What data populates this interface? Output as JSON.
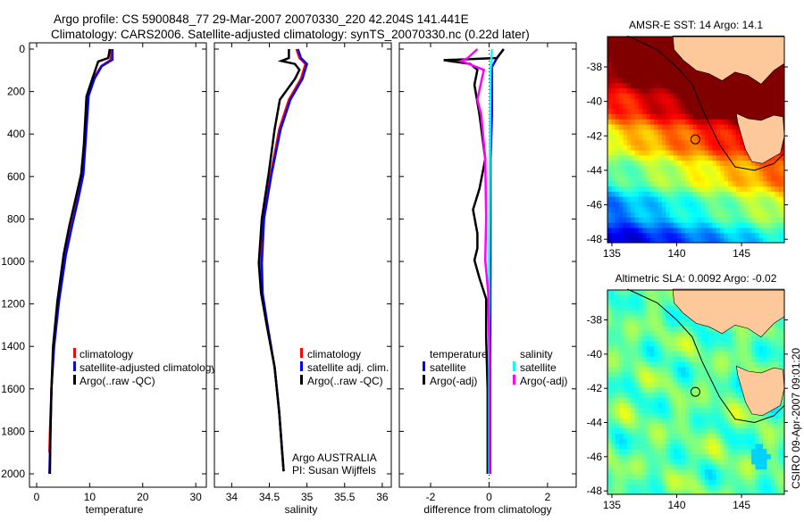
{
  "title": {
    "line1": "Argo profile: CS 5900848_77 29-Mar-2007 20070330_220 42.204S 141.441E",
    "line2": "Climatology: CARS2006. Satellite-adjusted climatology: synTS_20070330.nc (0.22d later)"
  },
  "credit": "CSIRO 09-Apr-2007 09:01:20",
  "colors": {
    "climatology": "#ff0000",
    "satellite": "#0000ff",
    "argo": "#000000",
    "sal_satellite": "#00ffff",
    "sal_argo": "#ff00ff",
    "land": "#fdc99a"
  },
  "chart_data": [
    {
      "type": "line",
      "name": "temperature-profile",
      "xlabel": "temperature",
      "ylabel": "",
      "xlim": [
        -1.35,
        32
      ],
      "ylim": [
        2000,
        0
      ],
      "xticks": [
        "0",
        "10",
        "20",
        "30"
      ],
      "xtick_values": [
        0,
        10,
        20,
        30
      ],
      "yticks": [
        "0",
        "200",
        "400",
        "600",
        "800",
        "1000",
        "1200",
        "1400",
        "1600",
        "1800",
        "2000"
      ],
      "ytick_values": [
        0,
        200,
        400,
        600,
        800,
        1000,
        1200,
        1400,
        1600,
        1800,
        2000
      ],
      "legend": [
        "climatology",
        "satellite-adjusted climatology",
        "Argo(..raw -QC)"
      ],
      "series": [
        {
          "name": "climatology",
          "color": "#ff0000",
          "depth": [
            0,
            50,
            80,
            140,
            220,
            450,
            590,
            700,
            830,
            970,
            1190,
            1400,
            1600,
            1800,
            1900
          ],
          "values": [
            14.0,
            14.0,
            12.2,
            10.7,
            9.6,
            9.1,
            8.7,
            7.8,
            6.6,
            5.4,
            4.1,
            3.2,
            2.8,
            2.5,
            2.4
          ]
        },
        {
          "name": "satellite-adjusted climatology",
          "color": "#0000ff",
          "depth": [
            0,
            50,
            80,
            140,
            220,
            450,
            590,
            700,
            830,
            970,
            1190,
            1400,
            1600,
            1800,
            2000
          ],
          "values": [
            14.3,
            14.3,
            12.3,
            10.9,
            9.8,
            9.2,
            8.8,
            7.9,
            6.7,
            5.5,
            4.2,
            3.3,
            2.8,
            2.6,
            2.4
          ]
        },
        {
          "name": "Argo(..raw -QC)",
          "color": "#000000",
          "depth": [
            0,
            42,
            59,
            139,
            223,
            450,
            588,
            700,
            828,
            966,
            1189,
            1400,
            1600,
            1800,
            2000
          ],
          "values": [
            13.8,
            13.5,
            11.6,
            10.5,
            9.4,
            8.9,
            8.4,
            7.4,
            6.2,
            5.1,
            3.9,
            3.1,
            2.8,
            2.6,
            2.5
          ]
        }
      ]
    },
    {
      "type": "line",
      "name": "salinity-profile",
      "xlabel": "salinity",
      "xlim": [
        33.77,
        36.12
      ],
      "ylim": [
        2000,
        0
      ],
      "xticks": [
        "34",
        "34.5",
        "35",
        "35.5",
        "36"
      ],
      "xtick_values": [
        34,
        34.5,
        35,
        35.5,
        36
      ],
      "legend": [
        "climatology",
        "satellite adj. clim.",
        "Argo(..raw -QC)"
      ],
      "annotations": [
        "Argo AUSTRALIA",
        "PI: Susan Wijffels"
      ],
      "series": [
        {
          "name": "climatology",
          "color": "#ff0000",
          "depth": [
            0,
            42,
            70,
            140,
            238,
            378,
            588,
            798,
            1008,
            1148,
            1288,
            1498,
            1708,
            1988
          ],
          "values": [
            34.86,
            34.9,
            34.98,
            34.92,
            34.76,
            34.63,
            34.52,
            34.42,
            34.39,
            34.4,
            34.46,
            34.57,
            34.63,
            34.69
          ]
        },
        {
          "name": "satellite adj. clim.",
          "color": "#0000ff",
          "depth": [
            0,
            42,
            70,
            140,
            238,
            378,
            588,
            798,
            1008,
            1148,
            1288,
            1498,
            1708,
            1988
          ],
          "values": [
            34.88,
            34.92,
            35.0,
            34.94,
            34.78,
            34.65,
            34.53,
            34.43,
            34.4,
            34.41,
            34.47,
            34.57,
            34.63,
            34.69
          ]
        },
        {
          "name": "Argo(..raw -QC)",
          "color": "#000000",
          "depth": [
            0,
            42,
            56,
            70,
            98,
            140,
            238,
            378,
            588,
            798,
            1008,
            1148,
            1288,
            1498,
            1708,
            1988
          ],
          "values": [
            34.76,
            34.76,
            34.66,
            34.84,
            34.9,
            34.84,
            34.64,
            34.57,
            34.49,
            34.4,
            34.36,
            34.39,
            34.46,
            34.57,
            34.63,
            34.69
          ]
        }
      ]
    },
    {
      "type": "line",
      "name": "difference-profile",
      "xlabel": "difference from climatology",
      "xlim": [
        -3.07,
        2.98
      ],
      "ylim": [
        2000,
        0
      ],
      "xticks": [
        "-2",
        "0",
        "2"
      ],
      "xtick_values": [
        -2,
        0,
        2
      ],
      "legend_headers": [
        "temperature",
        "salinity"
      ],
      "legend": [
        "satellite",
        "Argo(-adj)",
        "satellite",
        "Argo(-adj)"
      ],
      "series": [
        {
          "name": "temperature satellite",
          "color": "#0000ff",
          "depth": [
            0,
            42,
            84,
            308,
            518,
            1000,
            1500,
            2000
          ],
          "values": [
            0.5,
            0.27,
            0.1,
            0.1,
            0.05,
            0.05,
            0.04,
            0.04
          ]
        },
        {
          "name": "temperature Argo(-adj)",
          "color": "#000000",
          "depth": [
            0,
            42,
            52,
            70,
            98,
            168,
            308,
            518,
            658,
            756,
            868,
            938,
            994,
            1078,
            1176,
            1358,
            1600,
            2000
          ],
          "values": [
            0.5,
            0.27,
            -1.55,
            -0.64,
            -0.4,
            -0.5,
            -0.33,
            -0.13,
            -0.33,
            -0.55,
            -0.4,
            -0.4,
            -0.5,
            -0.33,
            -0.1,
            -0.1,
            -0.05,
            -0.05
          ]
        },
        {
          "name": "salinity satellite",
          "color": "#00ffff",
          "depth": [
            0,
            100,
            400,
            1000,
            2000
          ],
          "values": [
            0.1,
            0.05,
            0.03,
            0.0,
            0.0
          ]
        },
        {
          "name": "salinity Argo(-adj)",
          "color": "#ff00ff",
          "depth": [
            0,
            42,
            56,
            98,
            238,
            308,
            518,
            798,
            994,
            1148,
            1500,
            2000
          ],
          "values": [
            -0.4,
            -0.73,
            -0.95,
            -0.18,
            -0.4,
            -0.27,
            -0.13,
            -0.1,
            -0.13,
            -0.03,
            0.02,
            0.02
          ]
        }
      ]
    },
    {
      "type": "heatmap",
      "name": "sst-map",
      "title": "AMSR-E SST: 14 Argo: 14.1",
      "xlim": [
        134.66,
        148.3
      ],
      "ylim": [
        -48.2,
        -36.24
      ],
      "xticks": [
        "135",
        "140",
        "145"
      ],
      "xtick_values": [
        135,
        140,
        145
      ],
      "yticks": [
        "-38",
        "-40",
        "-42",
        "-44",
        "-46",
        "-48"
      ],
      "ytick_values": [
        -38,
        -40,
        -42,
        -44,
        -46,
        -48
      ],
      "float_position": {
        "lon": 141.441,
        "lat": -42.204
      }
    },
    {
      "type": "heatmap",
      "name": "sla-map",
      "title": "Altimetric SLA: 0.0092 Argo: -0.02",
      "xlim": [
        134.66,
        148.3
      ],
      "ylim": [
        -48.2,
        -36.25
      ],
      "xticks": [
        "135",
        "140",
        "145"
      ],
      "xtick_values": [
        135,
        140,
        145
      ],
      "yticks": [
        "-38",
        "-40",
        "-42",
        "-44",
        "-46",
        "-48"
      ],
      "ytick_values": [
        -38,
        -40,
        -42,
        -44,
        -46,
        -48
      ],
      "float_position": {
        "lon": 141.441,
        "lat": -42.204
      }
    }
  ]
}
